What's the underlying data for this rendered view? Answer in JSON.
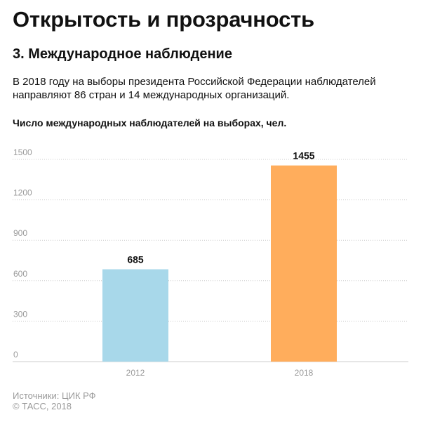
{
  "title": "Открытость и прозрачность",
  "subtitle": "3. Международное наблюдение",
  "lead": "В 2018 году на выборы президента Российской Федерации наблюдателей направляют 86 стран и 14 международных организаций.",
  "sources": {
    "line1": "Источники: ЦИК РФ",
    "line2": "© ТАСС, 2018"
  },
  "colors": {
    "bar_2012": "#a8d8ea",
    "bar_2018": "#ffad5c",
    "grid": "#cccccc",
    "axis_text": "#9a9a9a"
  },
  "chart_data": {
    "type": "bar",
    "title": "Число международных наблюдателей на выборах, чел.",
    "categories": [
      "2012",
      "2018"
    ],
    "values": [
      685,
      1455
    ],
    "data_labels": [
      "685",
      "1455"
    ],
    "ylim": [
      0,
      1500
    ],
    "yticks": [
      0,
      300,
      600,
      900,
      1200,
      1500
    ],
    "ytick_labels": [
      "0",
      "300",
      "600",
      "900",
      "1200",
      "1500"
    ],
    "grid": true,
    "grid_style": "dotted"
  }
}
